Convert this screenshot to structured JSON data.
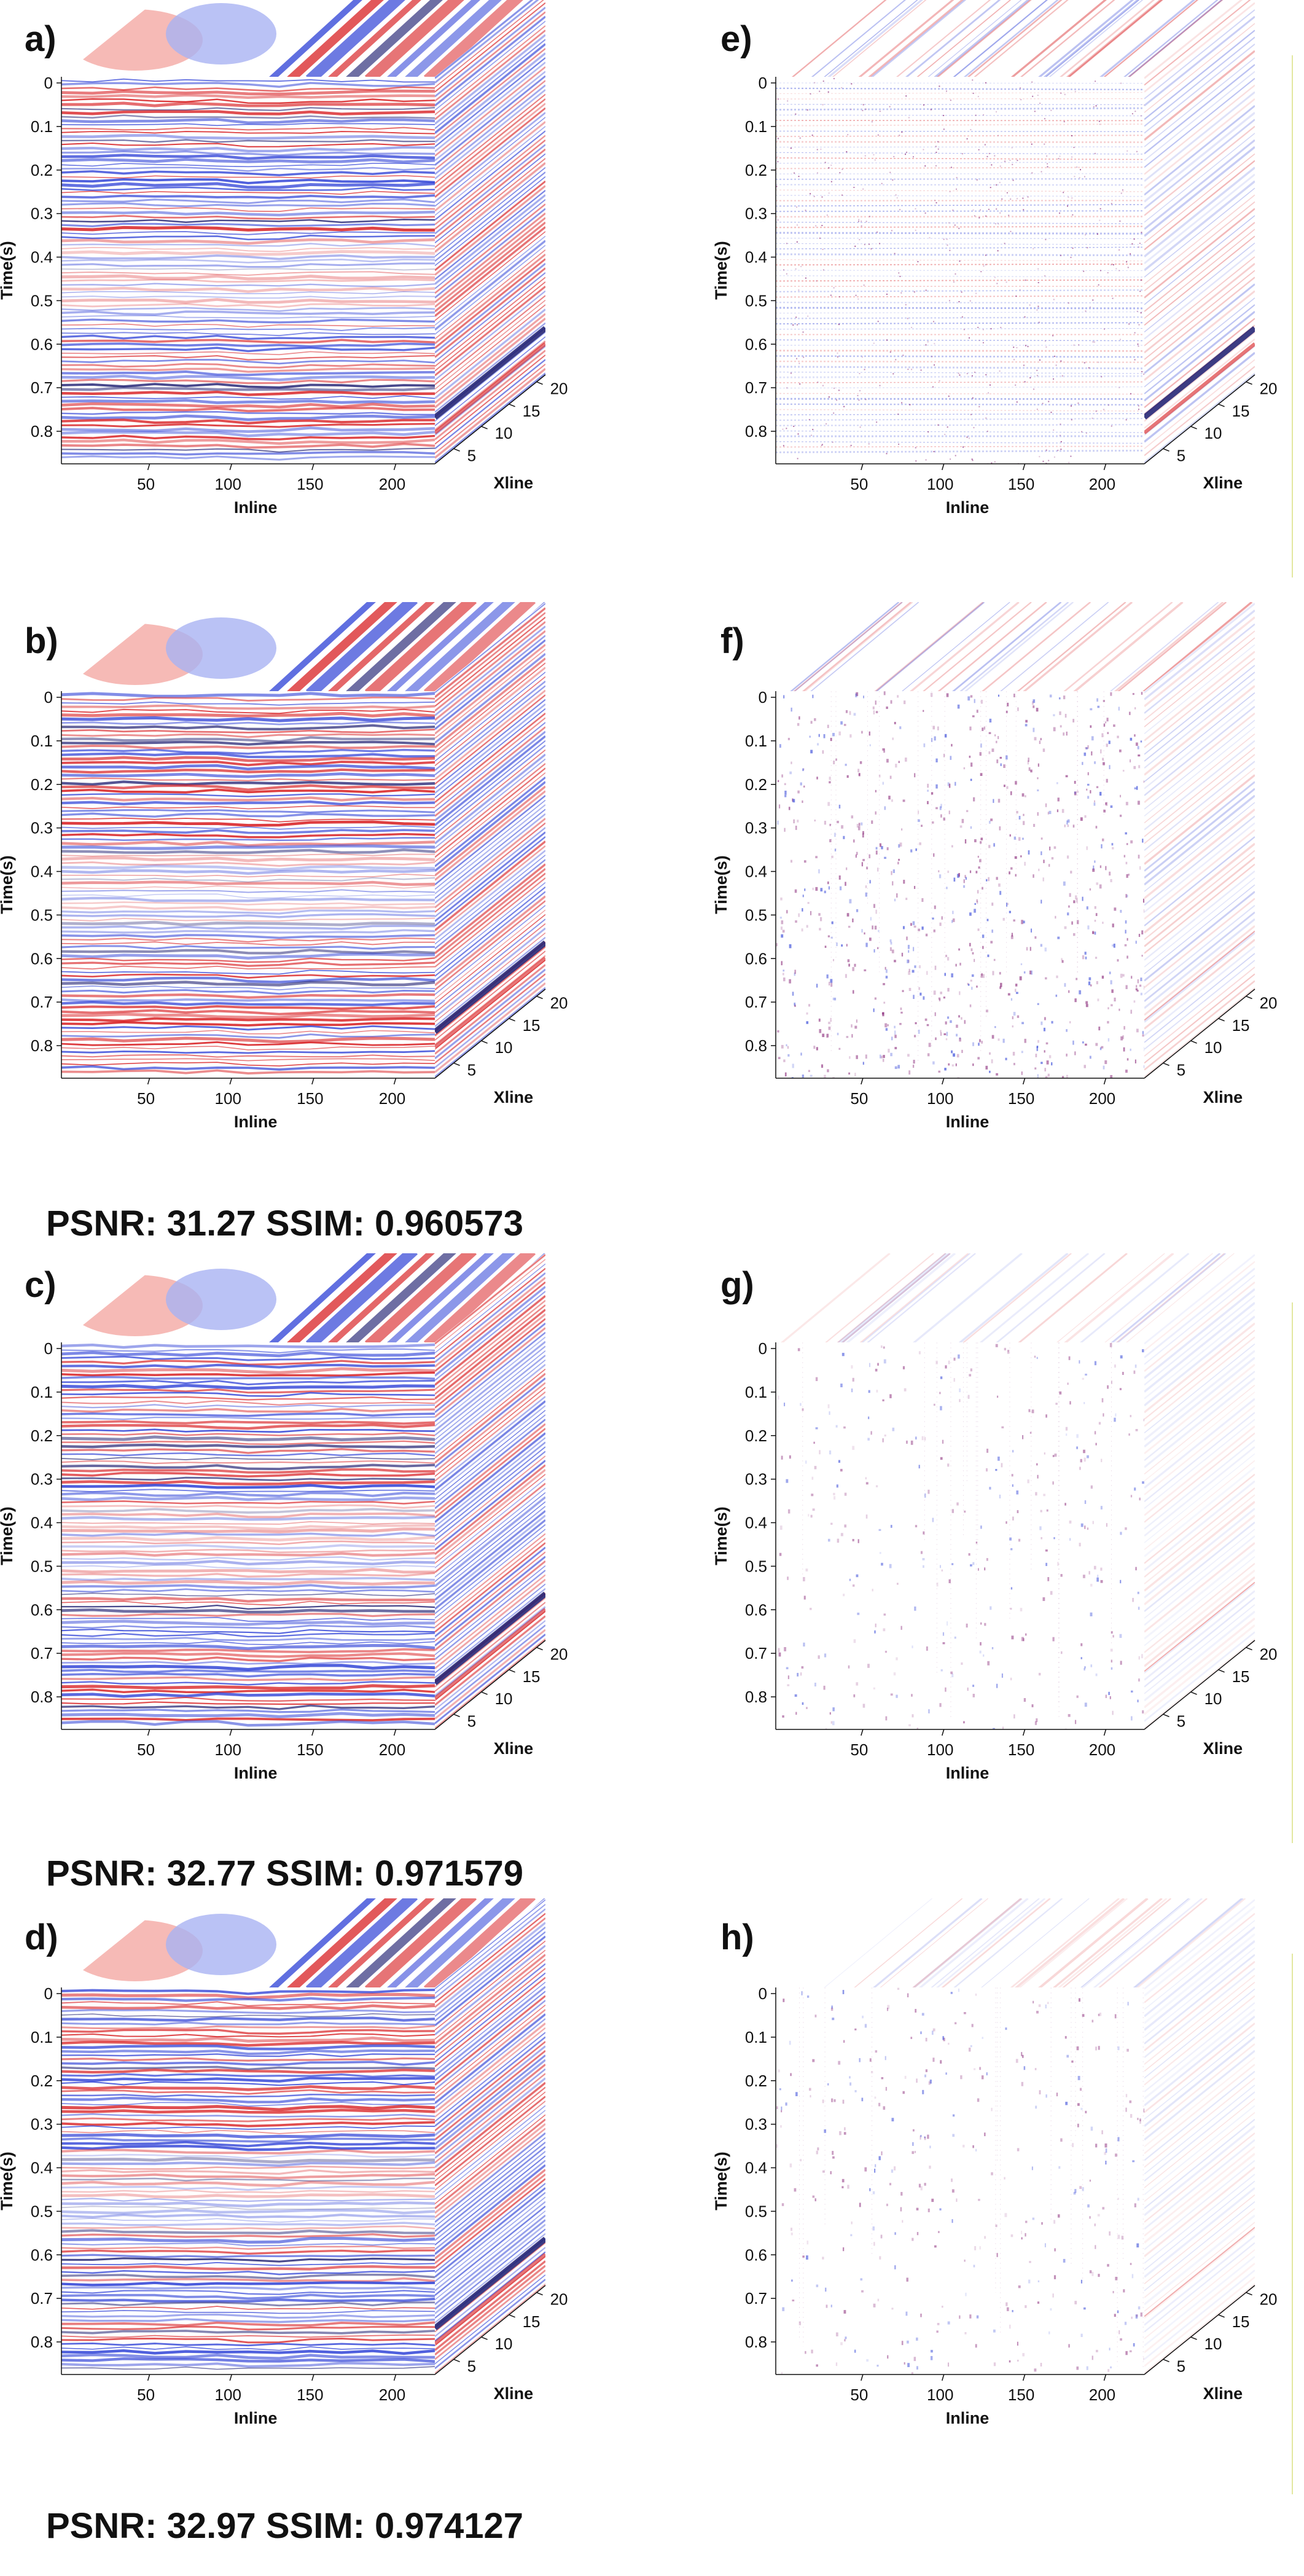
{
  "figure": {
    "panels": [
      {
        "id": "a",
        "label": "a)",
        "kind": "seismic",
        "metric": null
      },
      {
        "id": "b",
        "label": "b)",
        "kind": "seismic",
        "metric": "PSNR: 31.27 SSIM: 0.960573"
      },
      {
        "id": "c",
        "label": "c)",
        "kind": "seismic",
        "metric": "PSNR: 32.77 SSIM: 0.971579"
      },
      {
        "id": "d",
        "label": "d)",
        "kind": "seismic",
        "metric": "PSNR: 32.97 SSIM: 0.974127"
      },
      {
        "id": "e",
        "label": "e)",
        "kind": "noise",
        "metric": null
      },
      {
        "id": "f",
        "label": "f)",
        "kind": "residual",
        "metric": null
      },
      {
        "id": "g",
        "label": "g)",
        "kind": "residual-light",
        "metric": null
      },
      {
        "id": "h",
        "label": "h)",
        "kind": "residual-light",
        "metric": null
      }
    ],
    "axes": {
      "time_label": "Time(s)",
      "inline_label": "Inline",
      "xline_label": "Xline",
      "time_ticks": [
        "0",
        "0.1",
        "0.2",
        "0.3",
        "0.4",
        "0.5",
        "0.6",
        "0.7",
        "0.8"
      ],
      "inline_ticks": [
        "50",
        "100",
        "150",
        "200"
      ],
      "xline_ticks": [
        "5",
        "10",
        "15",
        "20"
      ]
    },
    "colors": {
      "positive": "#d7191c",
      "negative": "#2c3fd6",
      "dark": "#1a1a6e",
      "residual": "#8a2a7a",
      "edge": "#e3e8a0"
    }
  }
}
